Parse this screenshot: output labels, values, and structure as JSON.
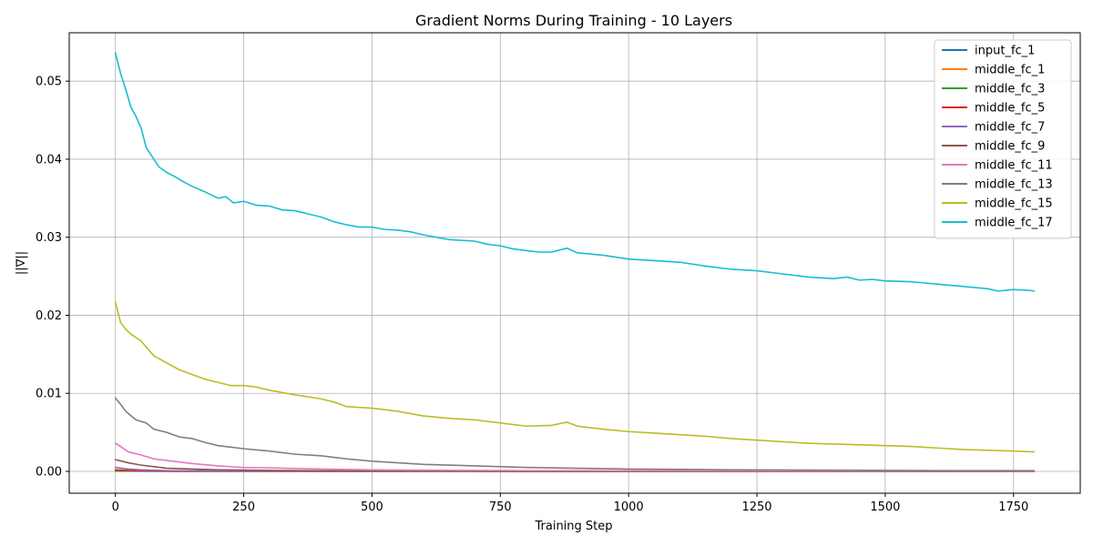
{
  "chart_data": {
    "type": "line",
    "title": "Gradient Norms During Training - 10 Layers",
    "xlabel": "Training Step",
    "ylabel": "||∇||",
    "xlim": [
      -90,
      1880
    ],
    "ylim": [
      -0.0028,
      0.0562
    ],
    "xticks": [
      0,
      250,
      500,
      750,
      1000,
      1250,
      1500,
      1750
    ],
    "yticks": [
      0.0,
      0.01,
      0.02,
      0.03,
      0.04,
      0.05
    ],
    "ytick_labels": [
      "0.00",
      "0.01",
      "0.02",
      "0.03",
      "0.04",
      "0.05"
    ],
    "grid": true,
    "legend_position": "top-right",
    "series": [
      {
        "name": "input_fc_1",
        "color": "#1f77b4",
        "x": [
          0,
          50,
          100,
          200,
          400,
          800,
          1200,
          1790
        ],
        "y": [
          2e-05,
          2e-05,
          1e-05,
          1e-05,
          1e-05,
          1e-05,
          1e-05,
          1e-05
        ]
      },
      {
        "name": "middle_fc_1",
        "color": "#ff7f0e",
        "x": [
          0,
          50,
          100,
          200,
          400,
          800,
          1200,
          1790
        ],
        "y": [
          4e-05,
          3e-05,
          2e-05,
          2e-05,
          1e-05,
          1e-05,
          1e-05,
          1e-05
        ]
      },
      {
        "name": "middle_fc_3",
        "color": "#2ca02c",
        "x": [
          0,
          50,
          100,
          200,
          400,
          800,
          1200,
          1790
        ],
        "y": [
          8e-05,
          5e-05,
          3e-05,
          2e-05,
          2e-05,
          1e-05,
          1e-05,
          1e-05
        ]
      },
      {
        "name": "middle_fc_5",
        "color": "#d62728",
        "x": [
          0,
          25,
          50,
          100,
          200,
          400,
          800,
          1200,
          1790
        ],
        "y": [
          0.0002,
          0.00012,
          8e-05,
          5e-05,
          3e-05,
          2e-05,
          1e-05,
          1e-05,
          1e-05
        ]
      },
      {
        "name": "middle_fc_7",
        "color": "#9467bd",
        "x": [
          0,
          25,
          50,
          100,
          200,
          400,
          800,
          1200,
          1790
        ],
        "y": [
          0.0005,
          0.0003,
          0.0002,
          0.0001,
          6e-05,
          3e-05,
          2e-05,
          1e-05,
          1e-05
        ]
      },
      {
        "name": "middle_fc_9",
        "color": "#8c564b",
        "x": [
          0,
          25,
          50,
          75,
          100,
          150,
          200,
          300,
          400,
          600,
          800,
          1200,
          1790
        ],
        "y": [
          0.0015,
          0.0011,
          0.0008,
          0.0006,
          0.0004,
          0.0003,
          0.0002,
          0.00012,
          8e-05,
          5e-05,
          3e-05,
          2e-05,
          1e-05
        ]
      },
      {
        "name": "middle_fc_11",
        "color": "#e377c2",
        "x": [
          0,
          10,
          25,
          50,
          75,
          100,
          150,
          200,
          250,
          300,
          400,
          500,
          600,
          800,
          1000,
          1200,
          1500,
          1790
        ],
        "y": [
          0.0036,
          0.0032,
          0.0025,
          0.0021,
          0.0016,
          0.0014,
          0.001,
          0.0007,
          0.0005,
          0.00045,
          0.0003,
          0.0002,
          0.00015,
          0.0001,
          8e-05,
          6e-05,
          5e-05,
          4e-05
        ]
      },
      {
        "name": "middle_fc_13",
        "color": "#7f7f7f",
        "x": [
          0,
          10,
          20,
          40,
          60,
          75,
          100,
          125,
          150,
          175,
          200,
          250,
          300,
          350,
          400,
          450,
          500,
          550,
          600,
          700,
          800,
          900,
          1000,
          1200,
          1400,
          1600,
          1790
        ],
        "y": [
          0.0094,
          0.0086,
          0.0077,
          0.0066,
          0.0062,
          0.0054,
          0.005,
          0.0044,
          0.0042,
          0.0037,
          0.0033,
          0.0029,
          0.0026,
          0.0022,
          0.002,
          0.0016,
          0.0013,
          0.0011,
          0.0009,
          0.0007,
          0.0005,
          0.0004,
          0.0003,
          0.0002,
          0.00015,
          0.0001,
          0.0001
        ]
      },
      {
        "name": "middle_fc_15",
        "color": "#bcbd22",
        "x": [
          0,
          10,
          20,
          30,
          50,
          75,
          100,
          125,
          150,
          175,
          200,
          225,
          250,
          275,
          300,
          350,
          400,
          425,
          450,
          500,
          525,
          550,
          600,
          650,
          700,
          750,
          800,
          850,
          880,
          900,
          950,
          1000,
          1050,
          1100,
          1150,
          1200,
          1250,
          1300,
          1350,
          1400,
          1450,
          1500,
          1550,
          1600,
          1650,
          1700,
          1750,
          1790
        ],
        "y": [
          0.0217,
          0.0191,
          0.0182,
          0.0176,
          0.0167,
          0.0148,
          0.0139,
          0.013,
          0.0124,
          0.0118,
          0.0114,
          0.011,
          0.011,
          0.0108,
          0.0104,
          0.0098,
          0.0093,
          0.0089,
          0.0083,
          0.0081,
          0.0079,
          0.0077,
          0.0071,
          0.0068,
          0.0066,
          0.0062,
          0.0058,
          0.0059,
          0.0063,
          0.0058,
          0.0054,
          0.0051,
          0.0049,
          0.0047,
          0.0045,
          0.0042,
          0.004,
          0.0038,
          0.0036,
          0.0035,
          0.0034,
          0.0033,
          0.0032,
          0.003,
          0.0028,
          0.0027,
          0.0026,
          0.0025
        ]
      },
      {
        "name": "middle_fc_17",
        "color": "#17becf",
        "x": [
          0,
          10,
          20,
          30,
          40,
          50,
          60,
          70,
          85,
          100,
          115,
          130,
          150,
          175,
          200,
          215,
          230,
          250,
          275,
          300,
          325,
          350,
          375,
          400,
          425,
          450,
          475,
          500,
          525,
          550,
          575,
          600,
          625,
          650,
          675,
          700,
          725,
          750,
          775,
          800,
          825,
          850,
          880,
          900,
          950,
          1000,
          1050,
          1100,
          1150,
          1200,
          1250,
          1300,
          1350,
          1400,
          1425,
          1450,
          1475,
          1500,
          1550,
          1600,
          1650,
          1700,
          1720,
          1750,
          1780,
          1790
        ],
        "y": [
          0.0536,
          0.051,
          0.049,
          0.0467,
          0.0455,
          0.044,
          0.0415,
          0.0405,
          0.039,
          0.0383,
          0.0378,
          0.0372,
          0.0365,
          0.0358,
          0.035,
          0.0352,
          0.0344,
          0.0346,
          0.0341,
          0.034,
          0.0335,
          0.0334,
          0.033,
          0.0326,
          0.032,
          0.0316,
          0.0313,
          0.0313,
          0.031,
          0.0309,
          0.0307,
          0.0303,
          0.03,
          0.0297,
          0.0296,
          0.0295,
          0.0291,
          0.0289,
          0.0285,
          0.0283,
          0.0281,
          0.0281,
          0.0286,
          0.028,
          0.0277,
          0.0272,
          0.027,
          0.0268,
          0.0263,
          0.0259,
          0.0257,
          0.0253,
          0.0249,
          0.0247,
          0.0249,
          0.0245,
          0.0246,
          0.0244,
          0.0243,
          0.024,
          0.0237,
          0.0234,
          0.0231,
          0.0233,
          0.0232,
          0.0231
        ]
      }
    ]
  }
}
